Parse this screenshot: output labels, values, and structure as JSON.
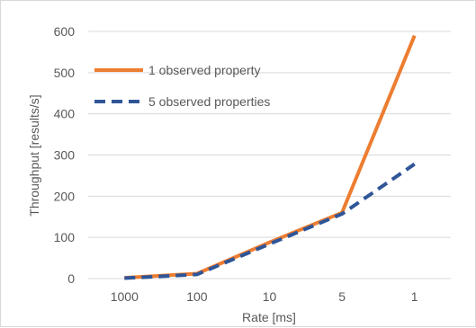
{
  "chart_data": {
    "type": "line",
    "categories": [
      "1000",
      "100",
      "10",
      "5",
      "1"
    ],
    "series": [
      {
        "name": "1 observed property",
        "values": [
          2,
          12,
          88,
          160,
          590
        ],
        "color": "#ED7D31",
        "dash": "solid"
      },
      {
        "name": "5 observed properties",
        "values": [
          1,
          10,
          84,
          157,
          278
        ],
        "color": "#2F5597",
        "dash": "dashed"
      }
    ],
    "yticks": [
      "0",
      "100",
      "200",
      "300",
      "400",
      "500",
      "600"
    ],
    "ylim": [
      0,
      600
    ],
    "xlabel": "Rate [ms]",
    "ylabel": "Throughput [results/s]",
    "grid": "horizontal",
    "legend": "top-left"
  }
}
